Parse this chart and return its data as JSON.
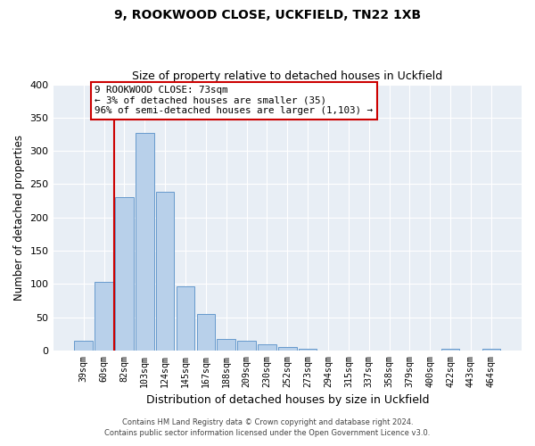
{
  "title": "9, ROOKWOOD CLOSE, UCKFIELD, TN22 1XB",
  "subtitle": "Size of property relative to detached houses in Uckfield",
  "xlabel": "Distribution of detached houses by size in Uckfield",
  "ylabel": "Number of detached properties",
  "bar_labels": [
    "39sqm",
    "60sqm",
    "82sqm",
    "103sqm",
    "124sqm",
    "145sqm",
    "167sqm",
    "188sqm",
    "209sqm",
    "230sqm",
    "252sqm",
    "273sqm",
    "294sqm",
    "315sqm",
    "337sqm",
    "358sqm",
    "379sqm",
    "400sqm",
    "422sqm",
    "443sqm",
    "464sqm"
  ],
  "bar_values": [
    14,
    103,
    230,
    327,
    238,
    96,
    55,
    17,
    14,
    9,
    5,
    2,
    0,
    0,
    0,
    0,
    0,
    0,
    2,
    0,
    2
  ],
  "bar_color": "#b8d0ea",
  "bar_edge_color": "#6699cc",
  "marker_line_color": "#cc0000",
  "annotation_text": "9 ROOKWOOD CLOSE: 73sqm\n← 3% of detached houses are smaller (35)\n96% of semi-detached houses are larger (1,103) →",
  "annotation_box_edge": "#cc0000",
  "ylim": [
    0,
    400
  ],
  "yticks": [
    0,
    50,
    100,
    150,
    200,
    250,
    300,
    350,
    400
  ],
  "footnote1": "Contains HM Land Registry data © Crown copyright and database right 2024.",
  "footnote2": "Contains public sector information licensed under the Open Government Licence v3.0.",
  "background_color": "#ffffff",
  "plot_bg_color": "#e8eef5"
}
